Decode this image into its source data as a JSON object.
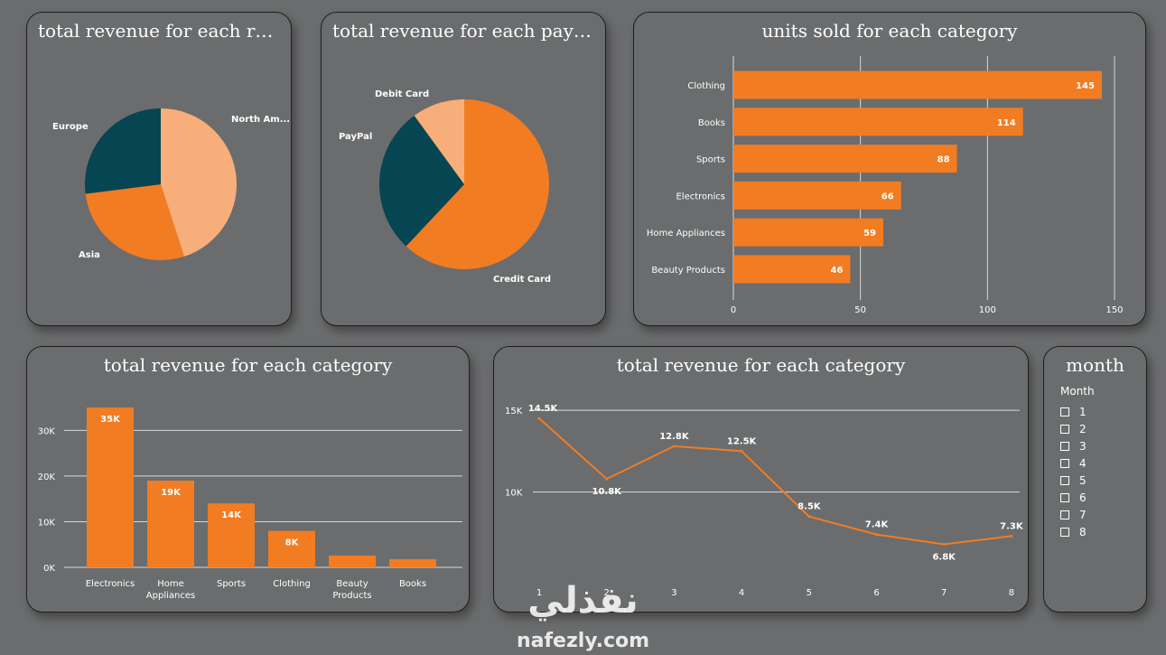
{
  "charts": {
    "region": {
      "title": "total revenue for each re...",
      "chart_data": {
        "type": "pie",
        "labels": [
          "North Am...",
          "Asia",
          "Europe"
        ],
        "values": [
          45,
          28,
          27
        ],
        "colors": [
          "#f8ae7b",
          "#f27c21",
          "#064552"
        ]
      }
    },
    "payment": {
      "title": "total revenue for each paym...",
      "chart_data": {
        "type": "pie",
        "labels": [
          "Credit Card",
          "PayPal",
          "Debit Card"
        ],
        "values": [
          62,
          28,
          10
        ],
        "colors": [
          "#f27c21",
          "#064552",
          "#f8ae7b"
        ]
      }
    },
    "units": {
      "title": "units sold for each category",
      "chart_data": {
        "type": "bar",
        "orientation": "horizontal",
        "categories": [
          "Clothing",
          "Books",
          "Sports",
          "Electronics",
          "Home Appliances",
          "Beauty Products"
        ],
        "values": [
          145,
          114,
          88,
          66,
          59,
          46
        ],
        "data_labels": [
          "145",
          "114",
          "88",
          "66",
          "59",
          "46"
        ],
        "xlim": [
          0,
          150
        ],
        "ticks": [
          0,
          50,
          100,
          150
        ],
        "tick_labels": [
          "0",
          "50",
          "100",
          "150"
        ],
        "color": "#f27c21",
        "grid": true
      }
    },
    "revenue_category": {
      "title": "total revenue for each category",
      "chart_data": {
        "type": "bar",
        "categories": [
          "Electronics",
          "Home Appliances",
          "Sports",
          "Clothing",
          "Beauty Products",
          "Books"
        ],
        "category_lines": [
          [
            "Electronics"
          ],
          [
            "Home",
            "Appliances"
          ],
          [
            "Sports"
          ],
          [
            "Clothing"
          ],
          [
            "Beauty",
            "Products"
          ],
          [
            "Books"
          ]
        ],
        "values": [
          35000,
          19000,
          14000,
          8000,
          2600,
          1800
        ],
        "data_labels": [
          "35K",
          "19K",
          "14K",
          "8K",
          "",
          ""
        ],
        "ylim": [
          0,
          37000
        ],
        "ticks": [
          0,
          10000,
          20000,
          30000
        ],
        "tick_labels": [
          "0K",
          "10K",
          "20K",
          "30K"
        ],
        "color": "#f27c21",
        "grid": true
      }
    },
    "revenue_month": {
      "title": "total revenue for each category",
      "chart_data": {
        "type": "line",
        "x": [
          1,
          2,
          3,
          4,
          5,
          6,
          7,
          8
        ],
        "x_labels": [
          "1",
          "2",
          "3",
          "4",
          "5",
          "6",
          "7",
          "8"
        ],
        "values": [
          14500,
          10800,
          12800,
          12500,
          8500,
          7400,
          6800,
          7300
        ],
        "data_labels": [
          "14.5K",
          "10.8K",
          "12.8K",
          "12.5K",
          "8.5K",
          "7.4K",
          "6.8K",
          "7.3K"
        ],
        "ylim": [
          5500,
          16000
        ],
        "ticks": [
          10000,
          15000
        ],
        "tick_labels": [
          "10K",
          "15K"
        ],
        "color": "#f27c21",
        "grid": true
      }
    }
  },
  "slicer": {
    "title": "month",
    "header": "Month",
    "options": [
      "1",
      "2",
      "3",
      "4",
      "5",
      "6",
      "7",
      "8"
    ]
  },
  "watermark": {
    "arabic": "نفذلي",
    "latin": "nafezly.com"
  }
}
